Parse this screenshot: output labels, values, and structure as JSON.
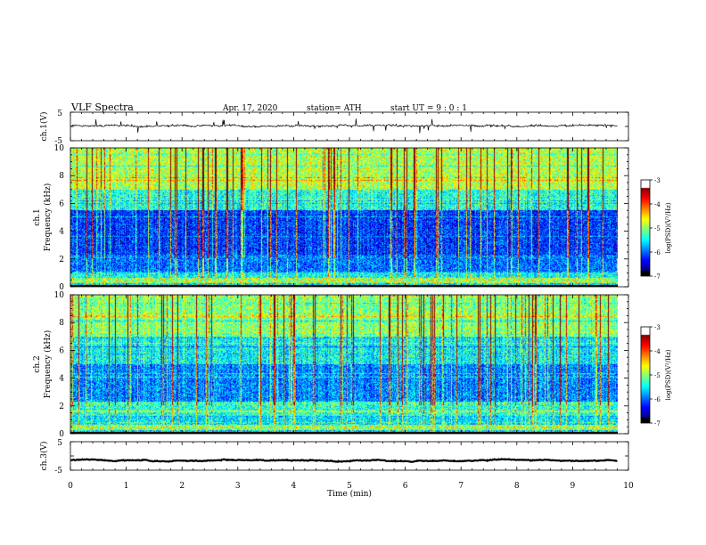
{
  "header": {
    "title": "VLF Spectra",
    "date": "Apr. 17, 2020",
    "station": "station= ATH",
    "start_ut": "start UT =  9 : 0 : 1"
  },
  "chart_data": [
    {
      "type": "line",
      "panel": "ch1-waveform",
      "ylabel": "ch.1(V)",
      "ylim": [
        -5,
        5
      ],
      "yticks": [
        "5",
        "-5"
      ],
      "xlim": [
        0,
        10
      ],
      "x_extent": [
        0,
        9.8
      ],
      "series_color": "#000000",
      "baseline": 0.3,
      "noise_amplitude": 0.8,
      "spike_amplitude": 2.5
    },
    {
      "type": "heatmap",
      "panel": "ch1-spectrogram",
      "ylabel_channel": "ch.1",
      "ylabel": "Frequency (kHz)",
      "ylim": [
        0,
        10
      ],
      "yticks": [
        "0",
        "2",
        "4",
        "6",
        "8",
        "10"
      ],
      "xlim": [
        0,
        10
      ],
      "x_extent": [
        0,
        9.8
      ],
      "colorbar": {
        "label": "log(PSD)(V²/Hz)",
        "range": [
          -7,
          -3
        ],
        "ticks": [
          "-3",
          "-4",
          "-5",
          "-6",
          "-7"
        ]
      }
    },
    {
      "type": "heatmap",
      "panel": "ch2-spectrogram",
      "ylabel_channel": "ch.2",
      "ylabel": "Frequency (kHz)",
      "ylim": [
        0,
        10
      ],
      "yticks": [
        "0",
        "2",
        "4",
        "6",
        "8",
        "10"
      ],
      "xlim": [
        0,
        10
      ],
      "x_extent": [
        0,
        9.8
      ],
      "colorbar": {
        "label": "log(PSD)(V²/Hz)",
        "range": [
          -7,
          -3
        ],
        "ticks": [
          "-3",
          "-4",
          "-5",
          "-6",
          "-7"
        ]
      }
    },
    {
      "type": "line",
      "panel": "ch3-waveform",
      "ylabel": "ch.3(V)",
      "ylim": [
        -5,
        5
      ],
      "yticks": [
        "5",
        "-5"
      ],
      "xlim": [
        0,
        10
      ],
      "x_extent": [
        0,
        9.8
      ],
      "series_color": "#000000",
      "baseline": -1.5,
      "noise_amplitude": 0.25,
      "spike_amplitude": 0
    }
  ],
  "xaxis": {
    "label": "Time (min)",
    "ticks": [
      "0",
      "1",
      "2",
      "3",
      "4",
      "5",
      "6",
      "7",
      "8",
      "9",
      "10"
    ]
  }
}
